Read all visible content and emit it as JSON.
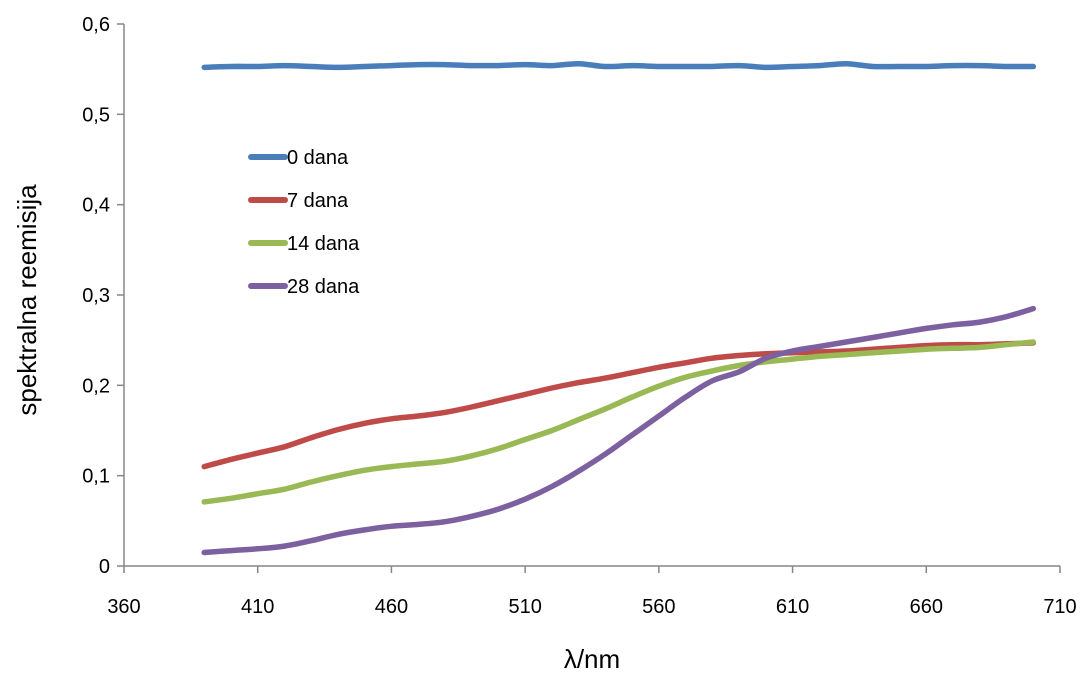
{
  "chart_data": {
    "type": "line",
    "title": "",
    "xlabel": "λ/nm",
    "ylabel": "spektralna reemisija",
    "xlim": [
      360,
      710
    ],
    "ylim": [
      0,
      0.6
    ],
    "xticks": [
      360,
      410,
      460,
      510,
      560,
      610,
      660,
      710
    ],
    "xtick_labels": [
      "360",
      "410",
      "460",
      "510",
      "560",
      "610",
      "660",
      "710"
    ],
    "yticks": [
      0,
      0.1,
      0.2,
      0.3,
      0.4,
      0.5,
      0.6
    ],
    "ytick_labels": [
      "0",
      "0,1",
      "0,2",
      "0,3",
      "0,4",
      "0,5",
      "0,6"
    ],
    "grid": false,
    "legend_position": "top-left (inside plot)",
    "x": [
      390,
      400,
      410,
      420,
      430,
      440,
      450,
      460,
      470,
      480,
      490,
      500,
      510,
      520,
      530,
      540,
      550,
      560,
      570,
      580,
      590,
      600,
      610,
      620,
      630,
      640,
      650,
      660,
      670,
      680,
      690,
      700
    ],
    "series": [
      {
        "name": "0 dana",
        "color": "#4A7EBB",
        "values": [
          0.552,
          0.553,
          0.553,
          0.554,
          0.553,
          0.552,
          0.553,
          0.554,
          0.555,
          0.555,
          0.554,
          0.554,
          0.555,
          0.554,
          0.556,
          0.553,
          0.554,
          0.553,
          0.553,
          0.553,
          0.554,
          0.552,
          0.553,
          0.554,
          0.556,
          0.553,
          0.553,
          0.553,
          0.554,
          0.554,
          0.553,
          0.553
        ]
      },
      {
        "name": "7 dana",
        "color": "#BE4B48",
        "values": [
          0.11,
          0.118,
          0.125,
          0.132,
          0.142,
          0.151,
          0.158,
          0.163,
          0.166,
          0.17,
          0.176,
          0.183,
          0.19,
          0.197,
          0.203,
          0.208,
          0.214,
          0.22,
          0.225,
          0.23,
          0.233,
          0.235,
          0.236,
          0.237,
          0.238,
          0.24,
          0.242,
          0.244,
          0.245,
          0.245,
          0.246,
          0.247
        ]
      },
      {
        "name": "14 dana",
        "color": "#98B954",
        "values": [
          0.071,
          0.075,
          0.08,
          0.085,
          0.093,
          0.1,
          0.106,
          0.11,
          0.113,
          0.116,
          0.122,
          0.13,
          0.14,
          0.15,
          0.162,
          0.174,
          0.187,
          0.199,
          0.209,
          0.216,
          0.222,
          0.226,
          0.229,
          0.232,
          0.234,
          0.236,
          0.238,
          0.24,
          0.241,
          0.242,
          0.245,
          0.248
        ]
      },
      {
        "name": "28 dana",
        "color": "#7D60A0",
        "values": [
          0.015,
          0.017,
          0.019,
          0.022,
          0.028,
          0.035,
          0.04,
          0.044,
          0.046,
          0.049,
          0.055,
          0.063,
          0.074,
          0.088,
          0.105,
          0.124,
          0.145,
          0.166,
          0.187,
          0.205,
          0.215,
          0.23,
          0.238,
          0.243,
          0.248,
          0.253,
          0.258,
          0.263,
          0.267,
          0.27,
          0.276,
          0.285
        ]
      }
    ]
  }
}
